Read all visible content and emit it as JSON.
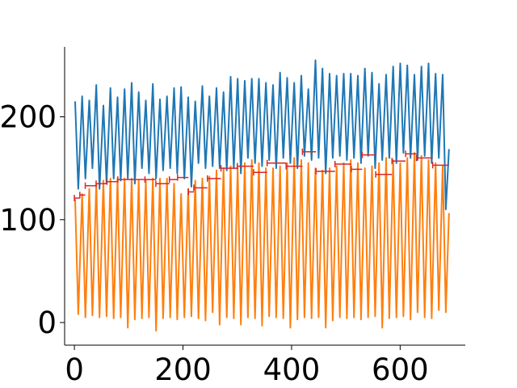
{
  "chart_data": {
    "type": "line",
    "xlim": [
      -18,
      720
    ],
    "ylim": [
      -22,
      268
    ],
    "xticks": [
      0,
      200,
      400,
      600
    ],
    "xtick_labels": [
      "0",
      "200",
      "400",
      "600"
    ],
    "yticks": [
      0,
      100,
      200
    ],
    "ytick_labels": [
      "0",
      "100",
      "200"
    ],
    "spines": [
      "left",
      "bottom"
    ],
    "grid": false,
    "x_range": [
      0,
      690
    ],
    "series": [
      {
        "color": "#1f77b4",
        "peaks": [
          215,
          220,
          216,
          231,
          211,
          228,
          219,
          227,
          233,
          224,
          216,
          232,
          217,
          220,
          228,
          229,
          219,
          215,
          230,
          220,
          228,
          224,
          239,
          237,
          235,
          237,
          237,
          233,
          231,
          243,
          238,
          233,
          240,
          227,
          255,
          247,
          242,
          240,
          242,
          242,
          240,
          247,
          243,
          232,
          241,
          249,
          252,
          250,
          241,
          249,
          252,
          242,
          241
        ],
        "troughs": [
          130,
          140,
          150,
          130,
          135,
          140,
          138,
          140,
          135,
          150,
          145,
          140,
          148,
          150,
          145,
          140,
          132,
          155,
          150,
          152,
          150,
          148,
          150,
          145,
          160,
          155,
          152,
          158,
          150,
          160,
          155,
          150,
          162,
          158,
          160,
          145,
          160,
          162,
          158,
          160,
          155,
          162,
          150,
          158,
          160,
          155,
          165,
          160,
          158,
          162,
          155,
          160,
          110
        ]
      },
      {
        "color": "#ff7f0e",
        "peaks": [
          120,
          125,
          130,
          135,
          138,
          140,
          140,
          140,
          140,
          138,
          138,
          140,
          140,
          140,
          135,
          125,
          130,
          138,
          140,
          142,
          148,
          150,
          152,
          150,
          155,
          158,
          155,
          150,
          150,
          152,
          155,
          160,
          158,
          155,
          150,
          148,
          150,
          152,
          155,
          158,
          155,
          150,
          152,
          155,
          160,
          158,
          155,
          160,
          165,
          162,
          158,
          155,
          152
        ],
        "troughs": [
          8,
          5,
          7,
          5,
          6,
          4,
          5,
          -5,
          3,
          4,
          5,
          -8,
          4,
          5,
          3,
          5,
          6,
          4,
          2,
          10,
          -2,
          5,
          4,
          -2,
          5,
          4,
          -3,
          6,
          5,
          4,
          -5,
          3,
          5,
          4,
          5,
          -5,
          2,
          5,
          4,
          5,
          3,
          5,
          6,
          -5,
          4,
          5,
          6,
          3,
          10,
          5,
          4,
          12,
          10
        ]
      }
    ],
    "step_markers": {
      "color": "#d62728",
      "segments": [
        {
          "x0": 0,
          "x1": 10,
          "y": 121
        },
        {
          "x0": 10,
          "x1": 20,
          "y": 124
        },
        {
          "x0": 20,
          "x1": 40,
          "y": 133
        },
        {
          "x0": 40,
          "x1": 60,
          "y": 135
        },
        {
          "x0": 60,
          "x1": 80,
          "y": 137
        },
        {
          "x0": 80,
          "x1": 130,
          "y": 139
        },
        {
          "x0": 130,
          "x1": 150,
          "y": 139
        },
        {
          "x0": 150,
          "x1": 175,
          "y": 135
        },
        {
          "x0": 175,
          "x1": 190,
          "y": 139
        },
        {
          "x0": 190,
          "x1": 210,
          "y": 141
        },
        {
          "x0": 210,
          "x1": 220,
          "y": 127
        },
        {
          "x0": 220,
          "x1": 245,
          "y": 131
        },
        {
          "x0": 245,
          "x1": 270,
          "y": 140
        },
        {
          "x0": 270,
          "x1": 300,
          "y": 150
        },
        {
          "x0": 300,
          "x1": 330,
          "y": 152
        },
        {
          "x0": 330,
          "x1": 355,
          "y": 146
        },
        {
          "x0": 355,
          "x1": 390,
          "y": 155
        },
        {
          "x0": 390,
          "x1": 420,
          "y": 152
        },
        {
          "x0": 420,
          "x1": 445,
          "y": 166
        },
        {
          "x0": 445,
          "x1": 480,
          "y": 147
        },
        {
          "x0": 480,
          "x1": 510,
          "y": 154
        },
        {
          "x0": 510,
          "x1": 530,
          "y": 149
        },
        {
          "x0": 530,
          "x1": 555,
          "y": 163
        },
        {
          "x0": 555,
          "x1": 585,
          "y": 144
        },
        {
          "x0": 585,
          "x1": 610,
          "y": 157
        },
        {
          "x0": 610,
          "x1": 630,
          "y": 164
        },
        {
          "x0": 630,
          "x1": 660,
          "y": 160
        },
        {
          "x0": 660,
          "x1": 690,
          "y": 153
        }
      ]
    }
  }
}
